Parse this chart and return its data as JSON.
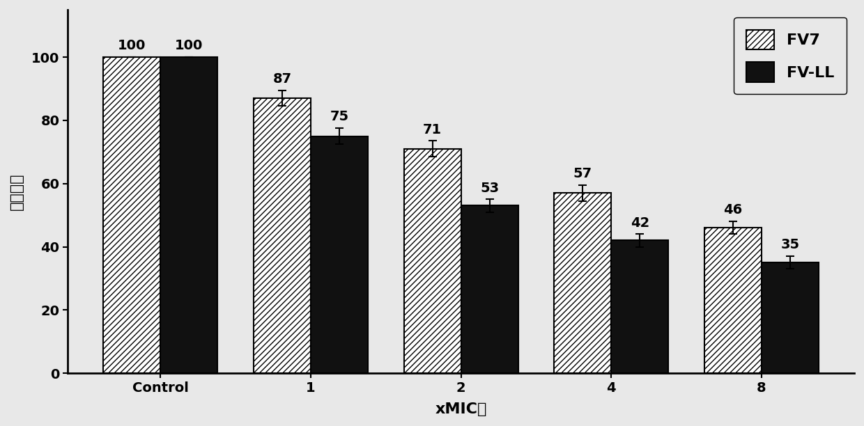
{
  "categories": [
    "Control",
    "1",
    "2",
    "4",
    "8"
  ],
  "fv7_values": [
    100,
    87,
    71,
    57,
    46
  ],
  "fvll_values": [
    100,
    75,
    53,
    42,
    35
  ],
  "fv7_errors": [
    0,
    2.5,
    2.5,
    2.5,
    2.0
  ],
  "fvll_errors": [
    0,
    2.5,
    2.0,
    2.0,
    2.0
  ],
  "fv7_label": "FV7",
  "fvll_label": "FV-LL",
  "xlabel": "xMIC值",
  "ylabel": "生物量％",
  "ylim": [
    0,
    115
  ],
  "yticks": [
    0,
    20,
    40,
    60,
    80,
    100
  ],
  "bar_width": 0.38,
  "background_color": "#e8e8e8",
  "fv7_hatch": "////",
  "fvll_color": "#111111",
  "bar_edge_color": "#000000",
  "axis_fontsize": 16,
  "tick_fontsize": 14,
  "label_fontsize": 14,
  "legend_fontsize": 16
}
